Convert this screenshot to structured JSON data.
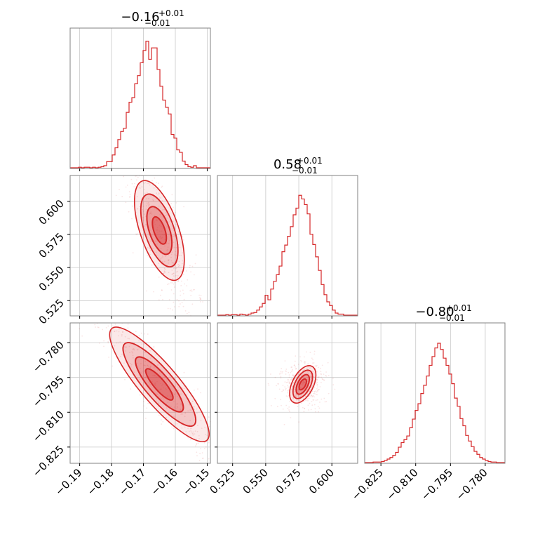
{
  "chart_data": {
    "type": "corner",
    "series_color": "#d62728",
    "grid": true,
    "parameters": [
      {
        "title": {
          "value": "−0.16",
          "plus": "+0.01",
          "minus": "−0.01"
        },
        "range": [
          -0.193,
          -0.149
        ],
        "ticks": [
          -0.19,
          -0.18,
          -0.17,
          -0.16,
          -0.15
        ],
        "tick_labels": [
          "−0.19",
          "−0.18",
          "−0.17",
          "−0.16",
          "−0.15"
        ],
        "hist_bins": [
          0.0,
          0.0,
          0.0,
          0.004,
          0.0,
          0.004,
          0.004,
          0.0,
          0.004,
          0.0,
          0.004,
          0.008,
          0.016,
          0.047,
          0.047,
          0.098,
          0.153,
          0.216,
          0.278,
          0.302,
          0.424,
          0.502,
          0.537,
          0.643,
          0.706,
          0.804,
          0.898,
          0.969,
          0.831,
          0.918,
          0.918,
          0.753,
          0.624,
          0.518,
          0.463,
          0.412,
          0.255,
          0.227,
          0.137,
          0.118,
          0.051,
          0.024,
          0.008,
          0.004,
          0.016,
          0.0,
          0.0,
          0.0,
          0.0,
          0.0
        ]
      },
      {
        "title": {
          "value": "0.58",
          "plus": "+0.01",
          "minus": "−0.01"
        },
        "range": [
          0.5135,
          0.6195
        ],
        "ticks": [
          0.525,
          0.55,
          0.575,
          0.6
        ],
        "tick_labels": [
          "0.525",
          "0.550",
          "0.575",
          "0.600"
        ],
        "hist_bins": [
          0.0,
          0.0,
          0.0,
          0.004,
          0.0,
          0.004,
          0.004,
          0.0,
          0.008,
          0.004,
          0.0,
          0.008,
          0.016,
          0.02,
          0.039,
          0.063,
          0.09,
          0.153,
          0.118,
          0.2,
          0.259,
          0.31,
          0.376,
          0.486,
          0.537,
          0.604,
          0.678,
          0.769,
          0.82,
          0.918,
          0.89,
          0.847,
          0.776,
          0.62,
          0.541,
          0.447,
          0.343,
          0.235,
          0.157,
          0.102,
          0.074,
          0.039,
          0.016,
          0.008,
          0.008,
          0.0,
          0.0,
          0.0,
          0.0,
          0.0
        ]
      },
      {
        "title": {
          "value": "−0.80",
          "plus": "+0.01",
          "minus": "−0.01"
        },
        "range": [
          -0.832,
          -0.7715
        ],
        "ticks": [
          -0.825,
          -0.81,
          -0.795,
          -0.78
        ],
        "tick_labels": [
          "−0.825",
          "−0.810",
          "−0.795",
          "−0.780"
        ],
        "hist_bins": [
          0.0,
          0.0,
          0.0,
          0.004,
          0.004,
          0.004,
          0.008,
          0.016,
          0.027,
          0.039,
          0.055,
          0.078,
          0.118,
          0.153,
          0.176,
          0.204,
          0.267,
          0.333,
          0.4,
          0.451,
          0.529,
          0.592,
          0.663,
          0.745,
          0.812,
          0.878,
          0.914,
          0.867,
          0.8,
          0.745,
          0.678,
          0.604,
          0.494,
          0.431,
          0.337,
          0.282,
          0.208,
          0.165,
          0.122,
          0.086,
          0.063,
          0.039,
          0.027,
          0.016,
          0.008,
          0.004,
          0.004,
          0.0,
          0.0,
          0.0
        ]
      }
    ],
    "joint": [
      {
        "x_param": 0,
        "y_param": 1,
        "center": [
          -0.165,
          0.578
        ],
        "dir": [
          0.01,
          0.0083
        ],
        "sd_along": 1.0,
        "sd_perp": 0.0012
      },
      {
        "x_param": 0,
        "y_param": 2,
        "center": [
          -0.165,
          -0.798
        ],
        "dir": [
          0.01,
          0.0117
        ],
        "sd_along": 1.0,
        "sd_perp": 0.0017
      },
      {
        "x_param": 1,
        "y_param": 2,
        "center": [
          0.578,
          -0.798
        ],
        "dir": [
          0.01,
          0.0113
        ],
        "sd_along": 1.0,
        "sd_perp": 0.0005
      }
    ]
  }
}
